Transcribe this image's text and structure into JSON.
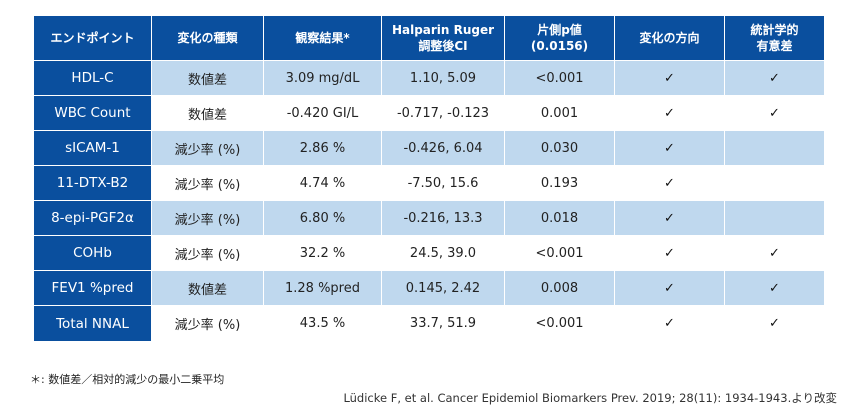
{
  "table": {
    "headers": [
      "エンドポイント",
      "変化の種類",
      "観察結果*",
      "Halparin Ruger\n調整後CI",
      "片側p値\n(0.0156)",
      "変化の方向",
      "統計学的\n有意差"
    ],
    "rows": [
      {
        "endpoint": "HDL-C",
        "type": "数値差",
        "observed": "3.09 mg/dL",
        "ci": "1.10, 5.09",
        "p": "<0.001",
        "direction": "✓",
        "significant": "✓"
      },
      {
        "endpoint": "WBC Count",
        "type": "数値差",
        "observed": "-0.420 GI/L",
        "ci": "-0.717, -0.123",
        "p": "0.001",
        "direction": "✓",
        "significant": "✓"
      },
      {
        "endpoint": "sICAM-1",
        "type": "減少率 (%)",
        "observed": "2.86 %",
        "ci": "-0.426, 6.04",
        "p": "0.030",
        "direction": "✓",
        "significant": ""
      },
      {
        "endpoint": "11-DTX-B2",
        "type": "減少率 (%)",
        "observed": "4.74 %",
        "ci": "-7.50, 15.6",
        "p": "0.193",
        "direction": "✓",
        "significant": ""
      },
      {
        "endpoint": "8-epi-PGF2α",
        "type": "減少率 (%)",
        "observed": "6.80 %",
        "ci": "-0.216, 13.3",
        "p": "0.018",
        "direction": "✓",
        "significant": ""
      },
      {
        "endpoint": "COHb",
        "type": "減少率 (%)",
        "observed": "32.2 %",
        "ci": "24.5, 39.0",
        "p": "<0.001",
        "direction": "✓",
        "significant": "✓"
      },
      {
        "endpoint": "FEV1 %pred",
        "type": "数値差",
        "observed": "1.28 %pred",
        "ci": "0.145, 2.42",
        "p": "0.008",
        "direction": "✓",
        "significant": "✓"
      },
      {
        "endpoint": "Total NNAL",
        "type": "減少率 (%)",
        "observed": "43.5 %",
        "ci": "33.7, 51.9",
        "p": "<0.001",
        "direction": "✓",
        "significant": "✓"
      }
    ]
  },
  "footnote": "＊: 数値差／相対的減少の最小二乗平均",
  "citation": "Lüdicke F, et al. Cancer Epidemiol Biomarkers Prev. 2019; 28(11): 1934-1943.より改変",
  "colors": {
    "header_bg": "#0a4f9e",
    "stripe": "#bfd8ee",
    "text_on_header": "#ffffff"
  }
}
